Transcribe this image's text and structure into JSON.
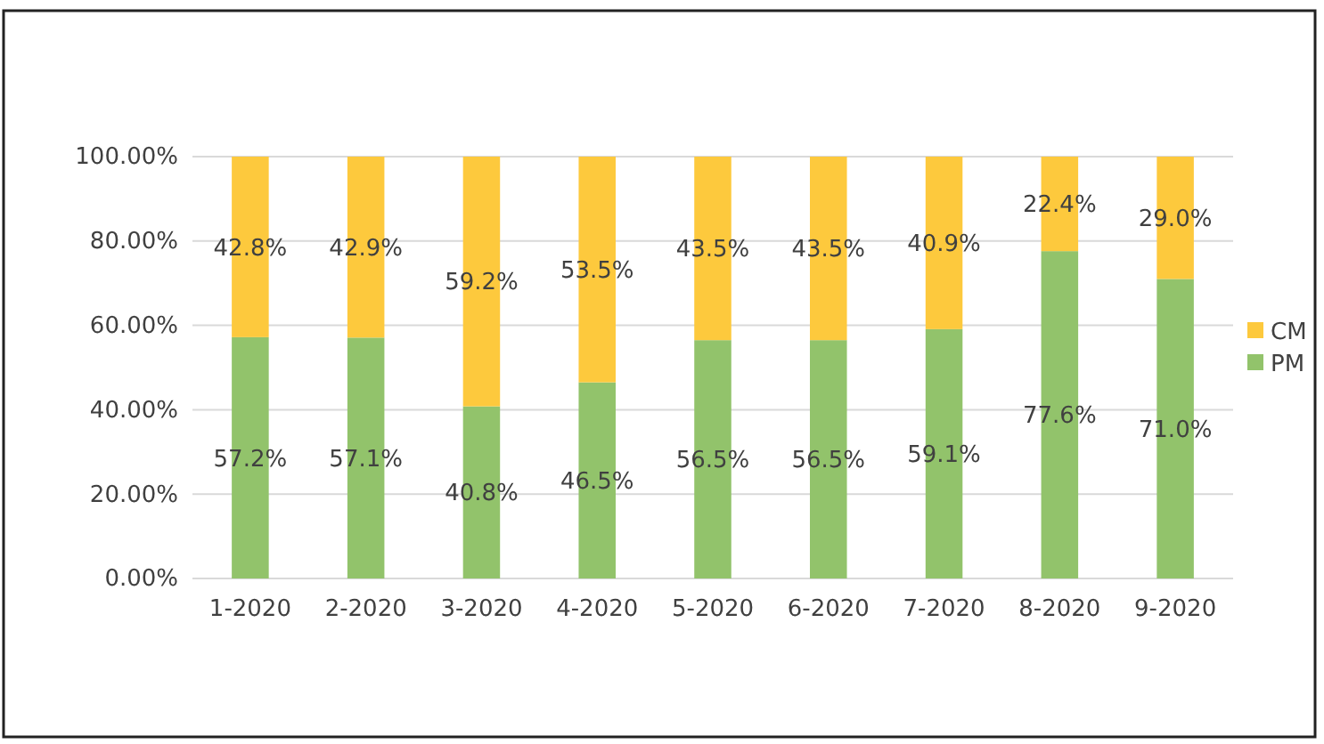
{
  "chart_data": {
    "type": "bar",
    "stacked": true,
    "categories": [
      "1-2020",
      "2-2020",
      "3-2020",
      "4-2020",
      "5-2020",
      "6-2020",
      "7-2020",
      "8-2020",
      "9-2020"
    ],
    "series": [
      {
        "name": "PM",
        "color": "#92c36b",
        "values": [
          57.2,
          57.1,
          40.8,
          46.5,
          56.5,
          56.5,
          59.1,
          77.6,
          71.0
        ],
        "value_labels": [
          "57.2%",
          "57.1%",
          "40.8%",
          "46.5%",
          "56.5%",
          "56.5%",
          "59.1%",
          "77.6%",
          "71.0%"
        ]
      },
      {
        "name": "CM",
        "color": "#fdc93d",
        "values": [
          42.8,
          42.9,
          59.2,
          53.5,
          43.5,
          43.5,
          40.9,
          22.4,
          29.0
        ],
        "value_labels": [
          "42.8%",
          "42.9%",
          "59.2%",
          "53.5%",
          "43.5%",
          "43.5%",
          "40.9%",
          "22.4%",
          "29.0%"
        ]
      }
    ],
    "ylim": [
      0,
      100
    ],
    "yticks": [
      {
        "value": 0,
        "label": "0.00%"
      },
      {
        "value": 20,
        "label": "20.00%"
      },
      {
        "value": 40,
        "label": "40.00%"
      },
      {
        "value": 60,
        "label": "60.00%"
      },
      {
        "value": 80,
        "label": "80.00%"
      },
      {
        "value": 100,
        "label": "100.00%"
      }
    ],
    "grid": "y",
    "legend": "right"
  }
}
